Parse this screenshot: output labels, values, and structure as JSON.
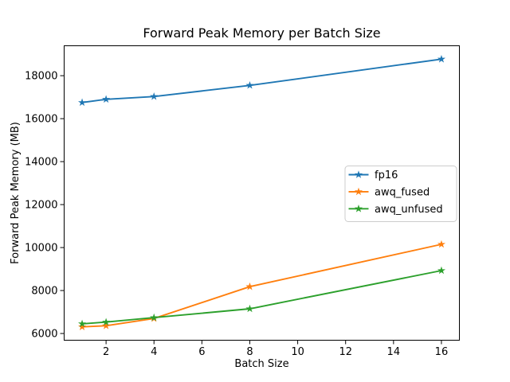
{
  "chart_data": {
    "type": "line",
    "title": "Forward Peak Memory per Batch Size",
    "xlabel": "Batch Size",
    "ylabel": "Forward Peak Memory (MB)",
    "x": [
      1,
      2,
      4,
      8,
      16
    ],
    "series": [
      {
        "name": "fp16",
        "color": "#1f77b4",
        "marker": "star",
        "values": [
          16750,
          16900,
          17030,
          17550,
          18770
        ]
      },
      {
        "name": "awq_fused",
        "color": "#ff7f0e",
        "marker": "star",
        "values": [
          6310,
          6360,
          6700,
          8180,
          10150
        ]
      },
      {
        "name": "awq_unfused",
        "color": "#2ca02c",
        "marker": "star",
        "values": [
          6450,
          6530,
          6740,
          7150,
          8930
        ]
      }
    ],
    "xlim": [
      0.25,
      16.75
    ],
    "ylim": [
      5687,
      19393
    ],
    "xticks": [
      2,
      4,
      6,
      8,
      10,
      12,
      14,
      16
    ],
    "yticks": [
      6000,
      8000,
      10000,
      12000,
      14000,
      16000,
      18000
    ],
    "grid": false,
    "legend": {
      "position": "center-right",
      "entries": [
        "fp16",
        "awq_fused",
        "awq_unfused"
      ]
    },
    "axis_color": "#000000",
    "background_color": "#ffffff"
  }
}
